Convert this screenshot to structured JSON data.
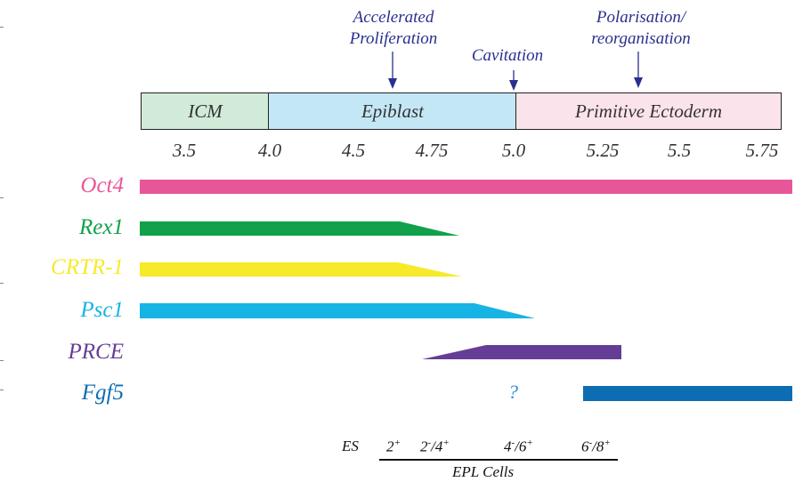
{
  "annotations": {
    "accelerated": "Accelerated\nProliferation",
    "cavitation": "Cavitation",
    "polarisation": "Polarisation/\nreorganisation"
  },
  "stages": [
    {
      "label": "ICM",
      "color": "#d2ebd9"
    },
    {
      "label": "Epiblast",
      "color": "#c4e7f6"
    },
    {
      "label": "Primitive Ectoderm",
      "color": "#fbe3ec"
    }
  ],
  "timepoints": [
    "3.5",
    "4.0",
    "4.5",
    "4.75",
    "5.0",
    "5.25",
    "5.5",
    "5.75"
  ],
  "genes": [
    {
      "name": "Oct4",
      "color": "#e8569a"
    },
    {
      "name": "Rex1",
      "color": "#10a14a"
    },
    {
      "name": "CRTR-1",
      "color": "#f7ea2a"
    },
    {
      "name": "Psc1",
      "color": "#16b4e4"
    },
    {
      "name": "PRCE",
      "color": "#663d96"
    },
    {
      "name": "Fgf5",
      "color": "#0d6db3"
    }
  ],
  "fgf5_unknown": "?",
  "es_label": "ES",
  "epl": {
    "cells": [
      {
        "base": "2",
        "sup": "+"
      },
      {
        "base": "2",
        "sup": "-",
        "base2": "/4",
        "sup2": "+"
      },
      {
        "base": "4",
        "sup": "-",
        "base2": "/6",
        "sup2": "+"
      },
      {
        "base": "6",
        "sup": "-",
        "base2": "/8",
        "sup2": "+"
      }
    ],
    "label": "EPL Cells"
  },
  "colors": {
    "annotation": "#2a2f8f",
    "outline": "#222222"
  }
}
